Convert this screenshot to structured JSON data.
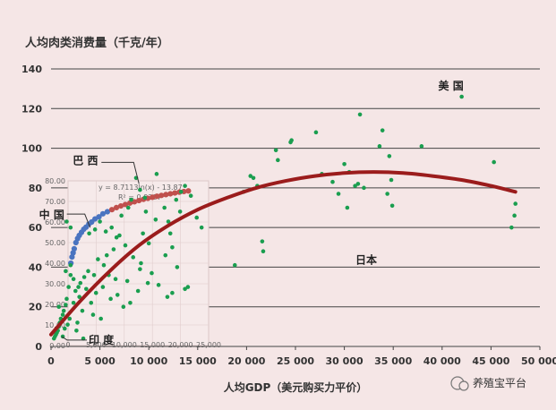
{
  "chart_data": [
    {
      "type": "scatter",
      "title": "人均肉类消费量（千克/年）",
      "xlabel": "人均GDP（美元购买力平价）",
      "ylabel": "",
      "xlim": [
        0,
        50000
      ],
      "ylim": [
        0,
        140
      ],
      "x_ticks": [
        "0",
        "5 000",
        "10 000",
        "15 000",
        "20 000",
        "25 000",
        "30 000",
        "35 000",
        "40 000",
        "45 000",
        "50 000"
      ],
      "y_ticks": [
        "0",
        "20",
        "40",
        "60",
        "80",
        "100",
        "120",
        "140"
      ],
      "grid": "horizontal",
      "colors": {
        "points": "#1a9e4f",
        "trend": "#9b1c1c",
        "inset_blue": "#4a74c0",
        "inset_red": "#c0504d"
      },
      "series": [
        {
          "points": [
            [
              42000,
              126
            ],
            [
              45300,
              93
            ],
            [
              47500,
              72
            ],
            [
              47400,
              66
            ],
            [
              47100,
              60
            ],
            [
              31600,
              117
            ],
            [
              33900,
              109
            ],
            [
              37900,
              101
            ],
            [
              27100,
              108
            ],
            [
              24600,
              104
            ],
            [
              24500,
              103
            ],
            [
              33600,
              101
            ],
            [
              34600,
              96
            ],
            [
              30000,
              92
            ],
            [
              23000,
              99
            ],
            [
              23200,
              94
            ],
            [
              27700,
              87
            ],
            [
              30500,
              88
            ],
            [
              31400,
              82
            ],
            [
              31100,
              81
            ],
            [
              32000,
              80
            ],
            [
              34800,
              84
            ],
            [
              34400,
              77
            ],
            [
              29400,
              77
            ],
            [
              28800,
              83
            ],
            [
              34900,
              71
            ],
            [
              30300,
              70
            ],
            [
              20400,
              86
            ],
            [
              20700,
              85
            ],
            [
              21100,
              81
            ],
            [
              19700,
              78
            ],
            [
              21600,
              53
            ],
            [
              21700,
              48
            ],
            [
              18800,
              41
            ],
            [
              15400,
              60
            ],
            [
              14900,
              65
            ],
            [
              14300,
              76
            ],
            [
              13300,
              78
            ],
            [
              12800,
              74
            ],
            [
              13700,
              81
            ],
            [
              10800,
              87
            ],
            [
              8700,
              85
            ],
            [
              9100,
              79
            ],
            [
              9600,
              75
            ],
            [
              11600,
              70
            ],
            [
              10700,
              64
            ],
            [
              12200,
              57
            ],
            [
              12400,
              50
            ],
            [
              11700,
              46
            ],
            [
              12900,
              40
            ],
            [
              14000,
              30
            ],
            [
              13700,
              29
            ],
            [
              12400,
              27
            ],
            [
              11900,
              25
            ],
            [
              9900,
              32
            ],
            [
              9100,
              39
            ],
            [
              9200,
              42
            ],
            [
              8400,
              45
            ],
            [
              7600,
              51
            ],
            [
              6700,
              55
            ],
            [
              6400,
              49
            ],
            [
              5700,
              46
            ],
            [
              5400,
              41
            ],
            [
              4800,
              44
            ],
            [
              4400,
              36
            ],
            [
              3800,
              38
            ],
            [
              3400,
              35
            ],
            [
              3000,
              32
            ],
            [
              2800,
              30
            ],
            [
              2500,
              28
            ],
            [
              2300,
              34
            ],
            [
              2000,
              36
            ],
            [
              1800,
              30
            ],
            [
              1600,
              24
            ],
            [
              1500,
              21
            ],
            [
              1300,
              18
            ],
            [
              1200,
              16
            ],
            [
              1000,
              14
            ],
            [
              900,
              12
            ],
            [
              800,
              10
            ],
            [
              700,
              8
            ],
            [
              600,
              7
            ],
            [
              500,
              6
            ],
            [
              400,
              5
            ],
            [
              300,
              4
            ],
            [
              800,
              20
            ],
            [
              1500,
              38
            ],
            [
              2000,
              41
            ],
            [
              2300,
              22
            ],
            [
              1900,
              14
            ],
            [
              1400,
              9
            ],
            [
              2700,
              12
            ],
            [
              3200,
              18
            ],
            [
              4100,
              22
            ],
            [
              4600,
              27
            ],
            [
              5300,
              30
            ],
            [
              6100,
              24
            ],
            [
              6800,
              26
            ],
            [
              7400,
              20
            ],
            [
              8100,
              22
            ],
            [
              3900,
              57
            ],
            [
              4500,
              59
            ],
            [
              5000,
              63
            ],
            [
              5600,
              58
            ],
            [
              6200,
              60
            ],
            [
              7000,
              56
            ],
            [
              2900,
              25
            ],
            [
              3600,
              29
            ],
            [
              5900,
              36
            ],
            [
              6600,
              34
            ],
            [
              7800,
              33
            ],
            [
              8900,
              28
            ],
            [
              2000,
              60
            ],
            [
              1600,
              63
            ],
            [
              1200,
              5
            ],
            [
              1700,
              11
            ],
            [
              2600,
              8
            ],
            [
              3300,
              4
            ],
            [
              4300,
              16
            ],
            [
              5100,
              14
            ],
            [
              7200,
              66
            ],
            [
              7900,
              70
            ],
            [
              8200,
              74
            ],
            [
              9700,
              68
            ],
            [
              10300,
              37
            ],
            [
              11000,
              31
            ],
            [
              9400,
              57
            ],
            [
              10000,
              52
            ],
            [
              12000,
              63
            ],
            [
              13200,
              68
            ]
          ]
        }
      ],
      "trend": {
        "x": [
          0,
          3000,
          6000,
          9000,
          12000,
          15000,
          18000,
          21000,
          24000,
          27000,
          30000,
          33000,
          36000,
          39000,
          42000,
          45000,
          47500
        ],
        "y": [
          6,
          23,
          38,
          51,
          61,
          69,
          75,
          80,
          83.5,
          86,
          87.5,
          88,
          87.5,
          86,
          84,
          81,
          78
        ]
      },
      "callouts": [
        {
          "label": "美 国",
          "x": 42000,
          "y": 126
        },
        {
          "label": "日本",
          "x": 30400,
          "y": 44
        },
        {
          "label": "巴 西",
          "x": 9000,
          "y": 82
        },
        {
          "label": "中 国",
          "x": 4000,
          "y": 60
        },
        {
          "label": "印 度",
          "x": 1100,
          "y": 5
        }
      ]
    },
    {
      "type": "scatter",
      "title": "",
      "xlim": [
        0,
        25000
      ],
      "ylim": [
        0,
        80
      ],
      "x_ticks": [
        "0",
        "5,000",
        "10,000",
        "15,000",
        "20,000",
        "25,000"
      ],
      "y_ticks": [
        "0.00",
        "10.00",
        "20.00",
        "30.00",
        "40.00",
        "50.00",
        "60.00",
        "70.00",
        "80.00"
      ],
      "equation": "y = 8.7113ln(x) - 13.87",
      "r2": "R² = 0.9387",
      "series": [
        {
          "color": "blue",
          "x": [
            500,
            700,
            900,
            1100,
            1400,
            1700,
            2000,
            2400,
            2800,
            3200,
            3700,
            4200,
            4800,
            5500,
            6200,
            7000
          ],
          "y": [
            40,
            43,
            45,
            47,
            50,
            52,
            53.5,
            55,
            56.5,
            57.5,
            59,
            60,
            61.5,
            62.5,
            64,
            65
          ]
        },
        {
          "color": "red",
          "x": [
            7800,
            8600,
            9400,
            10200,
            11000,
            11800,
            12600,
            13400,
            14200,
            15000,
            15800,
            16600,
            17400,
            18200,
            19000,
            19800,
            20600,
            21400
          ],
          "y": [
            66,
            67,
            67.8,
            68.5,
            69.2,
            69.8,
            70.4,
            71,
            71.5,
            72,
            72.5,
            72.9,
            73.3,
            73.7,
            74.1,
            74.5,
            74.8,
            75.1
          ]
        }
      ]
    }
  ],
  "watermark": "养殖宝平台"
}
